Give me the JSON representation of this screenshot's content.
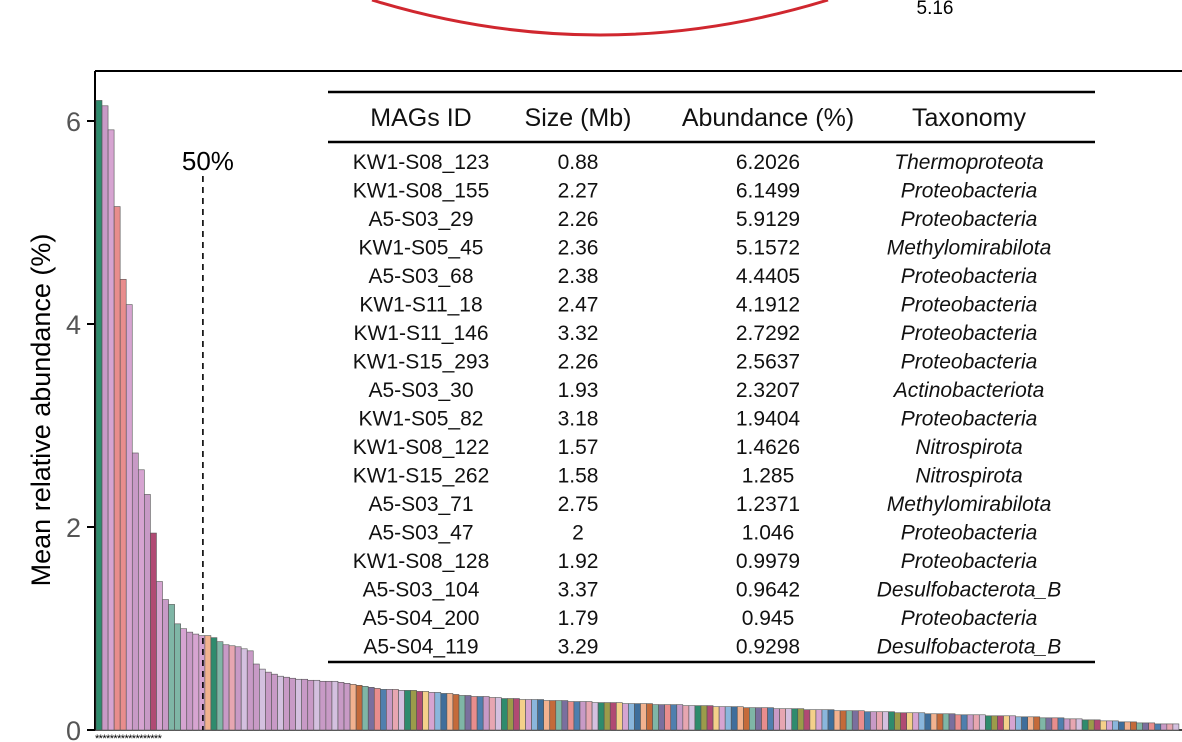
{
  "colors": {
    "axis": "#000000",
    "ring": "#d0272f",
    "palette": [
      "#c89ac6",
      "#d6a4d1",
      "#e88d8d",
      "#b04a73",
      "#7fb6a6",
      "#2e8b6d",
      "#f2b28f",
      "#e7a6b1",
      "#8ab6dc",
      "#4f7fae",
      "#f4d08a",
      "#7a6f9e",
      "#9b9b4a",
      "#c46a3a",
      "#d4c0df",
      "#3f6e9b"
    ]
  },
  "top_ring_label": "5.16",
  "significance_marks": "******************",
  "chart_data": {
    "type": "bar",
    "ylabel": "Mean relative abundance (%)",
    "ylim": [
      0,
      6.4
    ],
    "yticks": [
      0,
      2,
      4,
      6
    ],
    "ytick_labels": [
      "0",
      "2",
      "4",
      "6"
    ],
    "grid": false,
    "threshold_label": "50%",
    "threshold_after_bar": 18,
    "values": [
      6.2026,
      6.1499,
      5.9129,
      5.1572,
      4.4405,
      4.1912,
      2.7292,
      2.5637,
      2.3207,
      1.9404,
      1.4626,
      1.285,
      1.2371,
      1.046,
      0.9979,
      0.9642,
      0.945,
      0.9298,
      0.93,
      0.91,
      0.87,
      0.84,
      0.83,
      0.82,
      0.8,
      0.78,
      0.65,
      0.6,
      0.57,
      0.55,
      0.53,
      0.52,
      0.51,
      0.5,
      0.5,
      0.49,
      0.49,
      0.48,
      0.48,
      0.48,
      0.47,
      0.46,
      0.45,
      0.44,
      0.43,
      0.42,
      0.41,
      0.4,
      0.4,
      0.4,
      0.39,
      0.39,
      0.39,
      0.38,
      0.38,
      0.37,
      0.37,
      0.36,
      0.36,
      0.35,
      0.34,
      0.34,
      0.33,
      0.33,
      0.33,
      0.32,
      0.32,
      0.31,
      0.31,
      0.31,
      0.3,
      0.3,
      0.3,
      0.3,
      0.29,
      0.29,
      0.29,
      0.29,
      0.28,
      0.28,
      0.28,
      0.28,
      0.27,
      0.27,
      0.27,
      0.27,
      0.27,
      0.26,
      0.26,
      0.26,
      0.26,
      0.26,
      0.25,
      0.25,
      0.25,
      0.25,
      0.25,
      0.24,
      0.24,
      0.24,
      0.24,
      0.24,
      0.23,
      0.23,
      0.23,
      0.23,
      0.23,
      0.22,
      0.22,
      0.22,
      0.22,
      0.22,
      0.21,
      0.21,
      0.21,
      0.21,
      0.21,
      0.2,
      0.2,
      0.2,
      0.2,
      0.2,
      0.19,
      0.19,
      0.19,
      0.19,
      0.19,
      0.18,
      0.18,
      0.18,
      0.18,
      0.18,
      0.17,
      0.17,
      0.17,
      0.17,
      0.17,
      0.16,
      0.16,
      0.16,
      0.16,
      0.16,
      0.15,
      0.15,
      0.15,
      0.15,
      0.15,
      0.14,
      0.14,
      0.14,
      0.14,
      0.14,
      0.13,
      0.13,
      0.13,
      0.13,
      0.12,
      0.12,
      0.12,
      0.12,
      0.11,
      0.11,
      0.11,
      0.1,
      0.1,
      0.1,
      0.09,
      0.09,
      0.09,
      0.08,
      0.08,
      0.08,
      0.07,
      0.07,
      0.07,
      0.06,
      0.06,
      0.06,
      0.06
    ]
  },
  "table": {
    "columns": [
      "MAGs ID",
      "Size (Mb)",
      "Abundance (%)",
      "Taxonomy"
    ],
    "rows": [
      [
        "KW1-S08_123",
        "0.88",
        "6.2026",
        "Thermoproteota"
      ],
      [
        "KW1-S08_155",
        "2.27",
        "6.1499",
        "Proteobacteria"
      ],
      [
        "A5-S03_29",
        "2.26",
        "5.9129",
        "Proteobacteria"
      ],
      [
        "KW1-S05_45",
        "2.36",
        "5.1572",
        "Methylomirabilota"
      ],
      [
        "A5-S03_68",
        "2.38",
        "4.4405",
        "Proteobacteria"
      ],
      [
        "KW1-S11_18",
        "2.47",
        "4.1912",
        "Proteobacteria"
      ],
      [
        "KW1-S11_146",
        "3.32",
        "2.7292",
        "Proteobacteria"
      ],
      [
        "KW1-S15_293",
        "2.26",
        "2.5637",
        "Proteobacteria"
      ],
      [
        "A5-S03_30",
        "1.93",
        "2.3207",
        "Actinobacteriota"
      ],
      [
        "KW1-S05_82",
        "3.18",
        "1.9404",
        "Proteobacteria"
      ],
      [
        "KW1-S08_122",
        "1.57",
        "1.4626",
        "Nitrospirota"
      ],
      [
        "KW1-S15_262",
        "1.58",
        "1.285",
        "Nitrospirota"
      ],
      [
        "A5-S03_71",
        "2.75",
        "1.2371",
        "Methylomirabilota"
      ],
      [
        "A5-S03_47",
        "2",
        "1.046",
        "Proteobacteria"
      ],
      [
        "KW1-S08_128",
        "1.92",
        "0.9979",
        "Proteobacteria"
      ],
      [
        "A5-S03_104",
        "3.37",
        "0.9642",
        "Desulfobacterota_B"
      ],
      [
        "A5-S04_200",
        "1.79",
        "0.945",
        "Proteobacteria"
      ],
      [
        "A5-S04_119",
        "3.29",
        "0.9298",
        "Desulfobacterota_B"
      ]
    ]
  }
}
